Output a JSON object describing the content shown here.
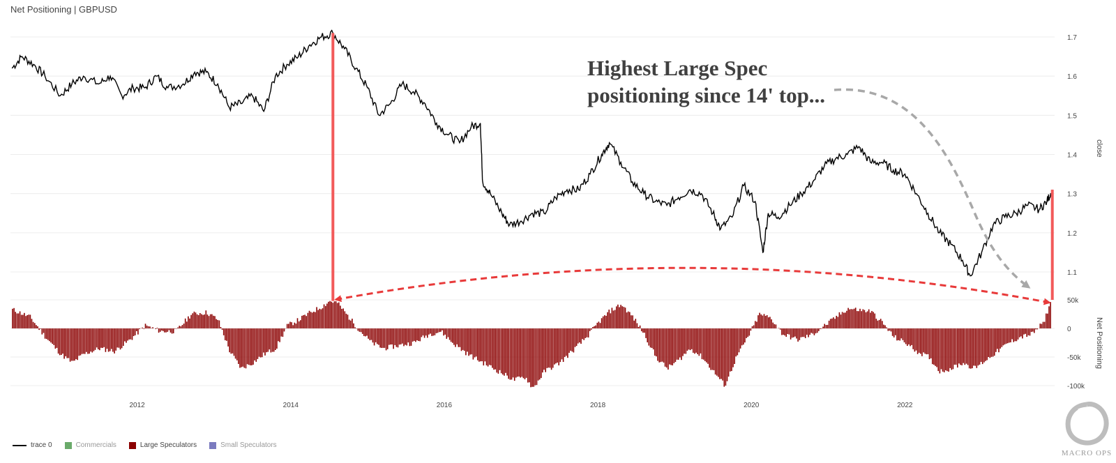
{
  "title": "Net Positioning | GBPUSD",
  "annotation": {
    "line1": "Highest Large Spec",
    "line2": "positioning since 14' top..."
  },
  "legend": [
    {
      "label": "trace 0",
      "kind": "line",
      "color": "#000000",
      "active": true
    },
    {
      "label": "Commercials",
      "kind": "box",
      "color": "#6aaa6a",
      "active": false
    },
    {
      "label": "Large Speculators",
      "kind": "box",
      "color": "#8b0000",
      "active": true
    },
    {
      "label": "Small Speculators",
      "kind": "box",
      "color": "#7b7bbf",
      "active": false
    }
  ],
  "logo": {
    "text": "MACRO OPS"
  },
  "colors": {
    "price": "#000000",
    "bars": "#8b0000",
    "highlight": "#f25a5a",
    "arrow_red": "#e83a3a",
    "arrow_gray": "#a8a8a8",
    "grid": "#ececec"
  },
  "chart_data": [
    {
      "type": "line",
      "name": "trace 0",
      "ylabel": "close",
      "ylim": [
        1.04,
        1.74
      ],
      "yticks": [
        1.1,
        1.2,
        1.3,
        1.4,
        1.5,
        1.6,
        1.7
      ],
      "yticklabels": [
        "1.1",
        "1.2",
        "1.3",
        "1.4",
        "1.5",
        "1.6",
        "1.7"
      ],
      "xlim": [
        2010.35,
        2023.95
      ],
      "xticks": [
        2012,
        2014,
        2016,
        2018,
        2020,
        2022
      ],
      "xticklabels": [
        "2012",
        "2014",
        "2016",
        "2018",
        "2020",
        "2022"
      ],
      "x": [
        2010.37,
        2010.5,
        2010.65,
        2010.8,
        2011.0,
        2011.15,
        2011.3,
        2011.5,
        2011.65,
        2011.8,
        2011.95,
        2012.1,
        2012.25,
        2012.4,
        2012.6,
        2012.75,
        2012.9,
        2013.05,
        2013.2,
        2013.35,
        2013.5,
        2013.65,
        2013.8,
        2013.95,
        2014.1,
        2014.25,
        2014.4,
        2014.55,
        2014.7,
        2014.85,
        2015.0,
        2015.15,
        2015.3,
        2015.45,
        2015.6,
        2015.75,
        2015.9,
        2016.05,
        2016.2,
        2016.35,
        2016.47,
        2016.5,
        2016.6,
        2016.75,
        2016.85,
        2017.0,
        2017.15,
        2017.3,
        2017.45,
        2017.6,
        2017.75,
        2017.9,
        2018.05,
        2018.15,
        2018.3,
        2018.45,
        2018.6,
        2018.75,
        2018.9,
        2019.05,
        2019.2,
        2019.35,
        2019.5,
        2019.6,
        2019.75,
        2019.9,
        2020.05,
        2020.15,
        2020.22,
        2020.35,
        2020.5,
        2020.65,
        2020.8,
        2020.95,
        2021.1,
        2021.25,
        2021.4,
        2021.55,
        2021.7,
        2021.85,
        2022.0,
        2022.15,
        2022.3,
        2022.45,
        2022.6,
        2022.75,
        2022.85,
        2023.0,
        2023.15,
        2023.3,
        2023.45,
        2023.6,
        2023.75,
        2023.85,
        2023.92
      ],
      "y": [
        1.62,
        1.65,
        1.63,
        1.6,
        1.55,
        1.58,
        1.6,
        1.58,
        1.6,
        1.55,
        1.57,
        1.57,
        1.6,
        1.57,
        1.58,
        1.61,
        1.61,
        1.58,
        1.52,
        1.53,
        1.55,
        1.51,
        1.6,
        1.63,
        1.65,
        1.68,
        1.7,
        1.71,
        1.67,
        1.62,
        1.57,
        1.5,
        1.53,
        1.58,
        1.56,
        1.53,
        1.48,
        1.45,
        1.43,
        1.47,
        1.48,
        1.33,
        1.3,
        1.25,
        1.22,
        1.23,
        1.25,
        1.25,
        1.29,
        1.31,
        1.31,
        1.35,
        1.4,
        1.43,
        1.38,
        1.33,
        1.3,
        1.28,
        1.27,
        1.29,
        1.31,
        1.3,
        1.25,
        1.21,
        1.24,
        1.32,
        1.28,
        1.15,
        1.25,
        1.24,
        1.27,
        1.3,
        1.33,
        1.37,
        1.39,
        1.4,
        1.42,
        1.38,
        1.38,
        1.36,
        1.35,
        1.3,
        1.25,
        1.2,
        1.17,
        1.13,
        1.09,
        1.15,
        1.22,
        1.24,
        1.25,
        1.27,
        1.26,
        1.28,
        1.31
      ]
    },
    {
      "type": "bar",
      "name": "Large Speculators",
      "ylabel": "Net Positioning",
      "ylim": [
        -110000,
        55000
      ],
      "yticks": [
        -100000,
        -50000,
        0,
        50000
      ],
      "yticklabels": [
        "-100k",
        "-50k",
        "0",
        "50k"
      ],
      "x": [
        2010.37,
        2010.6,
        2010.8,
        2011.0,
        2011.15,
        2011.3,
        2011.5,
        2011.7,
        2011.9,
        2012.1,
        2012.3,
        2012.5,
        2012.7,
        2012.9,
        2013.05,
        2013.2,
        2013.35,
        2013.5,
        2013.65,
        2013.8,
        2013.95,
        2014.1,
        2014.25,
        2014.4,
        2014.5,
        2014.6,
        2014.75,
        2014.9,
        2015.05,
        2015.2,
        2015.4,
        2015.6,
        2015.8,
        2015.95,
        2016.1,
        2016.3,
        2016.5,
        2016.7,
        2016.9,
        2017.05,
        2017.15,
        2017.3,
        2017.5,
        2017.7,
        2017.85,
        2018.0,
        2018.15,
        2018.3,
        2018.45,
        2018.6,
        2018.75,
        2018.9,
        2019.05,
        2019.2,
        2019.35,
        2019.5,
        2019.65,
        2019.8,
        2019.95,
        2020.1,
        2020.25,
        2020.4,
        2020.6,
        2020.8,
        2020.95,
        2021.1,
        2021.25,
        2021.4,
        2021.55,
        2021.7,
        2021.85,
        2022.0,
        2022.15,
        2022.3,
        2022.45,
        2022.6,
        2022.75,
        2022.9,
        2023.05,
        2023.2,
        2023.35,
        2023.5,
        2023.65,
        2023.8,
        2023.9
      ],
      "values": [
        33000,
        20000,
        -15000,
        -45000,
        -60000,
        -45000,
        -35000,
        -40000,
        -20000,
        5000,
        -5000,
        -5000,
        25000,
        28000,
        15000,
        -40000,
        -70000,
        -60000,
        -45000,
        -35000,
        5000,
        15000,
        28000,
        38000,
        48000,
        45000,
        20000,
        -5000,
        -25000,
        -35000,
        -30000,
        -25000,
        -10000,
        -5000,
        -25000,
        -45000,
        -60000,
        -75000,
        -90000,
        -85000,
        -105000,
        -75000,
        -60000,
        -35000,
        -15000,
        10000,
        30000,
        42000,
        20000,
        -10000,
        -50000,
        -70000,
        -55000,
        -35000,
        -50000,
        -75000,
        -100000,
        -50000,
        -15000,
        25000,
        18000,
        -10000,
        -20000,
        -10000,
        5000,
        20000,
        35000,
        32000,
        30000,
        10000,
        -15000,
        -25000,
        -40000,
        -50000,
        -75000,
        -70000,
        -60000,
        -70000,
        -55000,
        -40000,
        -25000,
        -15000,
        -10000,
        10000,
        50000
      ]
    }
  ]
}
